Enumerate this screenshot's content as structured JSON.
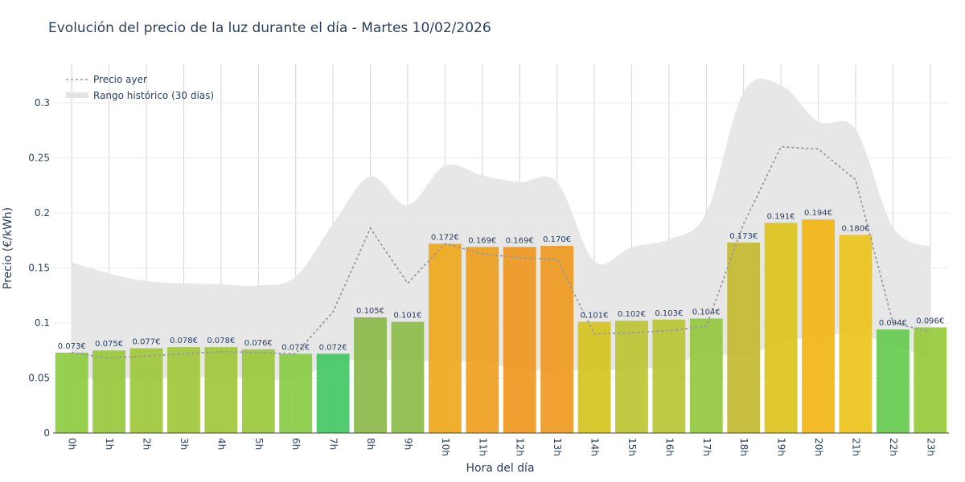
{
  "chart_data": {
    "type": "bar",
    "title": "Evolución del precio de la luz durante el día - Martes 10/02/2026",
    "xlabel": "Hora del día",
    "ylabel": "Precio (€/kWh)",
    "ylim": [
      0,
      0.335
    ],
    "yticks": [
      0,
      0.05,
      0.1,
      0.15,
      0.2,
      0.25,
      0.3
    ],
    "ytick_labels": [
      "0",
      "0.05",
      "0.1",
      "0.15",
      "0.2",
      "0.25",
      "0.3"
    ],
    "grid": true,
    "legend_position": "top-left",
    "categories": [
      "0h",
      "1h",
      "2h",
      "3h",
      "4h",
      "5h",
      "6h",
      "7h",
      "8h",
      "9h",
      "10h",
      "11h",
      "12h",
      "13h",
      "14h",
      "15h",
      "16h",
      "17h",
      "18h",
      "19h",
      "20h",
      "21h",
      "22h",
      "23h"
    ],
    "series": [
      {
        "kind": "bar",
        "values": [
          0.073,
          0.075,
          0.077,
          0.078,
          0.078,
          0.076,
          0.072,
          0.072,
          0.105,
          0.101,
          0.172,
          0.169,
          0.169,
          0.17,
          0.101,
          0.102,
          0.103,
          0.104,
          0.173,
          0.191,
          0.194,
          0.18,
          0.094,
          0.096
        ],
        "labels": [
          "0.073€",
          "0.075€",
          "0.077€",
          "0.078€",
          "0.078€",
          "0.076€",
          "0.072€",
          "0.072€",
          "0.105€",
          "0.101€",
          "0.172€",
          "0.169€",
          "0.169€",
          "0.170€",
          "0.101€",
          "0.102€",
          "0.103€",
          "0.104€",
          "0.173€",
          "0.191€",
          "0.194€",
          "0.180€",
          "0.094€",
          "0.096€"
        ],
        "colors": [
          "#8ecb40",
          "#97c93c",
          "#a0c83a",
          "#a2c73a",
          "#a2c73a",
          "#99c93c",
          "#88cc44",
          "#44c764",
          "#8ab84a",
          "#8cbd48",
          "#f0a81c",
          "#ee9f20",
          "#ee981f",
          "#ee9a1f",
          "#d6c420",
          "#bcc532",
          "#b9c434",
          "#93c83f",
          "#c4ba30",
          "#dcc41c",
          "#f2b615",
          "#ebc41c",
          "#66cb50",
          "#96cb3c"
        ]
      },
      {
        "kind": "line",
        "name": "Precio ayer",
        "color": "#9a9a9a",
        "values": [
          0.073,
          0.068,
          0.07,
          0.072,
          0.074,
          0.073,
          0.072,
          0.11,
          0.186,
          0.136,
          0.172,
          0.163,
          0.159,
          0.158,
          0.09,
          0.091,
          0.093,
          0.097,
          0.19,
          0.26,
          0.258,
          0.23,
          0.1,
          0.092
        ]
      },
      {
        "kind": "band",
        "name": "Rango histórico (30 días)",
        "color": "#e6e6e6",
        "upper": [
          0.155,
          0.145,
          0.138,
          0.136,
          0.135,
          0.134,
          0.142,
          0.19,
          0.233,
          0.207,
          0.243,
          0.234,
          0.228,
          0.228,
          0.156,
          0.169,
          0.176,
          0.2,
          0.31,
          0.316,
          0.283,
          0.276,
          0.187,
          0.169
        ],
        "lower": [
          0.049,
          0.05,
          0.05,
          0.051,
          0.051,
          0.05,
          0.049,
          0.064,
          0.066,
          0.066,
          0.065,
          0.065,
          0.057,
          0.057,
          0.057,
          0.058,
          0.061,
          0.072,
          0.07,
          0.082,
          0.088,
          0.09,
          0.08,
          0.068
        ]
      }
    ]
  }
}
